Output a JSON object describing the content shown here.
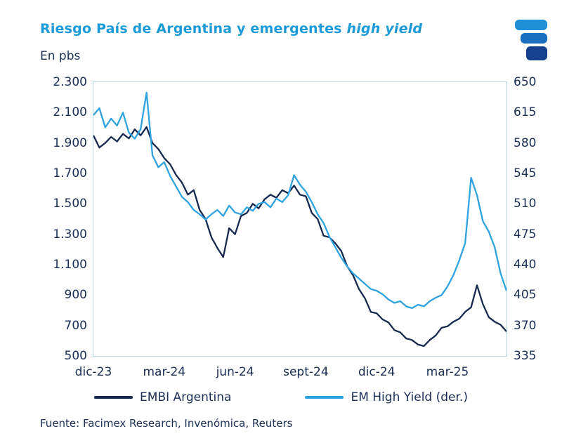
{
  "header": {
    "units": "En pbs"
  },
  "footer": {
    "source": "Fuente: Facimex Research, Invenómica, Reuters"
  },
  "icons": {
    "brand_logo": "facimex-logo-icon"
  },
  "colors": {
    "title_blue": "#1b9ad8",
    "text_navy": "#1b2e55",
    "plot_border": "#b5d7ec",
    "embi_line": "#17294e",
    "em_high_yield_line": "#2fa3e0"
  },
  "chart_data": {
    "type": "line",
    "title": "Riesgo País de Argentina y emergentes high yield",
    "title_main": "Riesgo País de Argentina y emergentes ",
    "title_italic": "high yield",
    "units_label": "En pbs",
    "grid": false,
    "legend_position": "bottom",
    "x_total_months": 17.5,
    "x_ticks": [
      {
        "label": "dic-23",
        "month": 0
      },
      {
        "label": "mar-24",
        "month": 3
      },
      {
        "label": "jun-24",
        "month": 6
      },
      {
        "label": "sept-24",
        "month": 9
      },
      {
        "label": "dic-24",
        "month": 12
      },
      {
        "label": "mar-25",
        "month": 15
      }
    ],
    "left_ylim": [
      500,
      2300
    ],
    "right_ylim": [
      335,
      650
    ],
    "left_ticks": [
      "2.300",
      "2.100",
      "1.900",
      "1.700",
      "1.500",
      "1.300",
      "1.100",
      "900",
      "700",
      "500"
    ],
    "right_ticks": [
      "650",
      "615",
      "580",
      "545",
      "510",
      "475",
      "440",
      "405",
      "370",
      "335"
    ],
    "series": [
      {
        "name": "EMBI Argentina",
        "axis": "left",
        "color": "#17294e",
        "values": [
          1950,
          1870,
          1900,
          1940,
          1910,
          1960,
          1930,
          1990,
          1950,
          2005,
          1900,
          1860,
          1800,
          1760,
          1690,
          1640,
          1560,
          1590,
          1460,
          1400,
          1280,
          1210,
          1150,
          1340,
          1300,
          1420,
          1440,
          1500,
          1470,
          1530,
          1560,
          1540,
          1590,
          1570,
          1620,
          1560,
          1550,
          1440,
          1400,
          1290,
          1280,
          1240,
          1190,
          1090,
          1030,
          940,
          880,
          790,
          780,
          740,
          720,
          670,
          655,
          615,
          605,
          575,
          565,
          605,
          635,
          685,
          695,
          725,
          745,
          790,
          820,
          965,
          840,
          755,
          725,
          705,
          660
        ]
      },
      {
        "name": "EM High Yield (der.)",
        "axis": "right",
        "color": "#2fa3e0",
        "values": [
          612,
          620,
          598,
          608,
          600,
          615,
          592,
          585,
          596,
          638,
          566,
          552,
          558,
          542,
          530,
          518,
          512,
          503,
          498,
          492,
          498,
          503,
          496,
          508,
          500,
          498,
          506,
          502,
          510,
          512,
          506,
          516,
          512,
          520,
          543,
          532,
          524,
          512,
          498,
          488,
          472,
          460,
          448,
          438,
          430,
          424,
          418,
          412,
          410,
          406,
          400,
          396,
          398,
          392,
          390,
          394,
          392,
          398,
          402,
          405,
          415,
          428,
          445,
          465,
          540,
          520,
          490,
          478,
          460,
          430,
          410
        ]
      }
    ]
  }
}
